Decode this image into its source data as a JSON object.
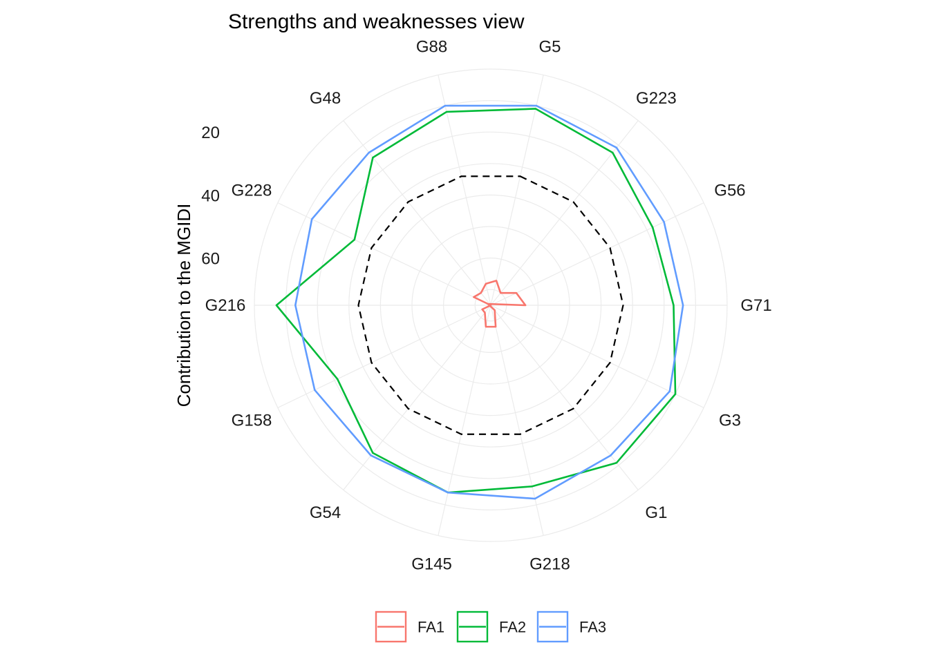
{
  "chart_data": {
    "type": "line",
    "coord": "polar",
    "title": "Strengths and weaknesses view",
    "ylabel": "Contribution to the MGIDI",
    "yticks": [
      20,
      40,
      60
    ],
    "ylim_reversed": [
      0,
      75
    ],
    "categories": [
      "G5",
      "G223",
      "G56",
      "G71",
      "G3",
      "G1",
      "G218",
      "G145",
      "G54",
      "G158",
      "G216",
      "G228",
      "G48",
      "G88"
    ],
    "series": [
      {
        "name": "FA1",
        "color": "#F8766D",
        "values": [
          67,
          70,
          66,
          64,
          76,
          73,
          68,
          68,
          72,
          72,
          75,
          69,
          70,
          68
        ]
      },
      {
        "name": "FA2",
        "color": "#00BA38",
        "values": [
          11,
          13,
          18,
          17,
          10,
          11,
          16,
          14,
          15,
          21,
          7,
          27,
          15,
          12
        ]
      },
      {
        "name": "FA3",
        "color": "#619CFF",
        "values": [
          10,
          11,
          14,
          14,
          12,
          14,
          12,
          14,
          14,
          13,
          13,
          12,
          13,
          10
        ]
      }
    ],
    "reference": {
      "style": "dashed",
      "color": "#000000",
      "value": 33
    },
    "legend_position": "bottom",
    "grid": true
  }
}
